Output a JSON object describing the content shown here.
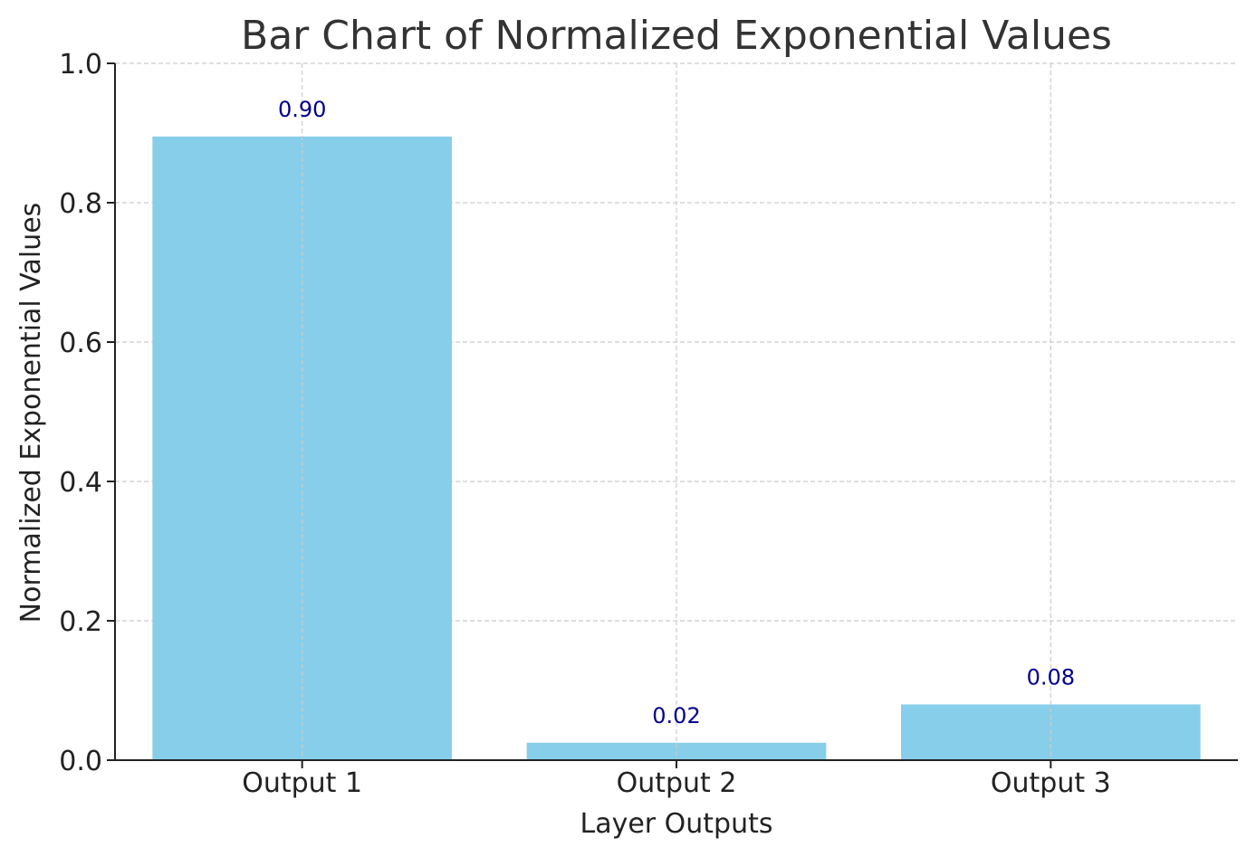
{
  "chart_data": {
    "type": "bar",
    "title": "Bar Chart of Normalized Exponential Values",
    "xlabel": "Layer Outputs",
    "ylabel": "Normalized Exponential Values",
    "categories": [
      "Output 1",
      "Output 2",
      "Output 3"
    ],
    "values": [
      0.895,
      0.025,
      0.08
    ],
    "data_labels": [
      "0.90",
      "0.02",
      "0.08"
    ],
    "ylim": [
      0.0,
      1.0
    ],
    "yticks": [
      0.0,
      0.2,
      0.4,
      0.6,
      0.8,
      1.0
    ],
    "ytick_labels": [
      "0.0",
      "0.2",
      "0.4",
      "0.6",
      "0.8",
      "1.0"
    ],
    "grid": true,
    "legend": "none",
    "colors": {
      "bar": "#87ceeb",
      "data_label": "#00008b",
      "grid": "#cccccc",
      "axis": "#222222",
      "title": "#333333"
    }
  }
}
